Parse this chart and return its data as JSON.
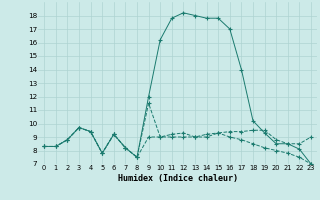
{
  "xlabel": "Humidex (Indice chaleur)",
  "bg_color": "#cceae8",
  "grid_color": "#aed4d2",
  "line_color": "#1a7a6e",
  "xlim": [
    -0.5,
    23.5
  ],
  "ylim": [
    7,
    19
  ],
  "yticks": [
    7,
    8,
    9,
    10,
    11,
    12,
    13,
    14,
    15,
    16,
    17,
    18
  ],
  "xticks": [
    0,
    1,
    2,
    3,
    4,
    5,
    6,
    7,
    8,
    9,
    10,
    11,
    12,
    13,
    14,
    15,
    16,
    17,
    18,
    19,
    20,
    21,
    22,
    23
  ],
  "series": [
    {
      "y": [
        8.3,
        8.3,
        8.8,
        9.7,
        9.4,
        7.8,
        9.2,
        8.2,
        7.5,
        11.5,
        9.0,
        9.0,
        9.0,
        9.0,
        9.0,
        9.3,
        9.4,
        9.4,
        9.5,
        9.5,
        8.8,
        8.5,
        8.5,
        9.0
      ],
      "linestyle": "--"
    },
    {
      "y": [
        8.3,
        8.3,
        8.8,
        9.7,
        9.4,
        7.8,
        9.2,
        8.2,
        7.5,
        9.0,
        9.0,
        9.2,
        9.3,
        9.0,
        9.2,
        9.3,
        9.0,
        8.8,
        8.5,
        8.2,
        8.0,
        7.8,
        7.5,
        7.0
      ],
      "linestyle": "--"
    },
    {
      "y": [
        8.3,
        8.3,
        8.8,
        9.7,
        9.4,
        7.8,
        9.2,
        8.2,
        7.5,
        12.0,
        16.2,
        17.8,
        18.2,
        18.0,
        17.8,
        17.8,
        17.0,
        14.0,
        10.2,
        9.3,
        8.5,
        8.5,
        8.1,
        7.0
      ],
      "linestyle": "-"
    }
  ]
}
